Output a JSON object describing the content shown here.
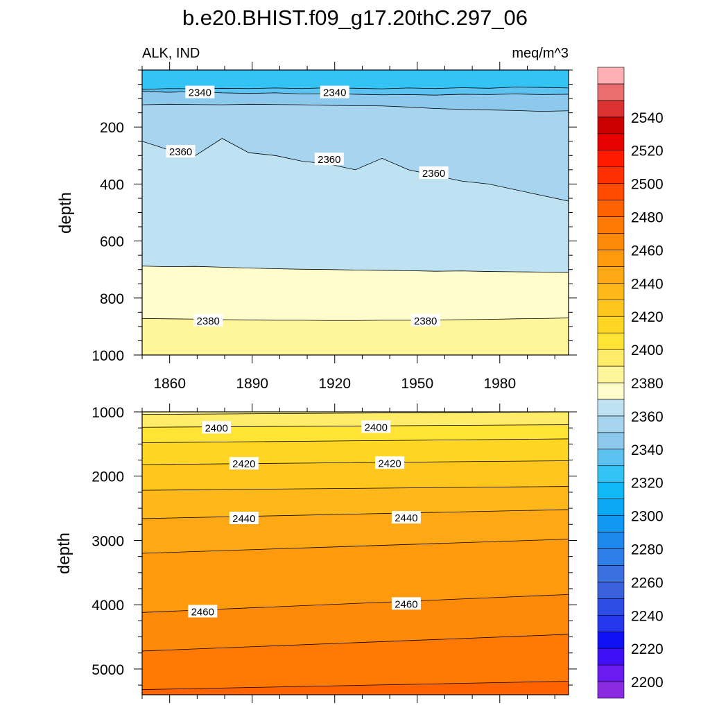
{
  "title": "b.e20.BHIST.f09_g17.20thC.297_06",
  "chart_data": [
    {
      "type": "contour",
      "panel": "upper",
      "left_label": "ALK, IND",
      "right_label": "meq/m^3",
      "xlabel": "",
      "ylabel": "depth",
      "xlim": [
        1850,
        2005
      ],
      "ylim": [
        1000,
        0
      ],
      "x_ticks": [
        1860,
        1890,
        1920,
        1950,
        1980
      ],
      "y_ticks": [
        200,
        400,
        600,
        800,
        1000
      ],
      "contour_lines": [
        {
          "level": 2330,
          "depths": [
            68,
            65,
            66,
            64,
            65,
            63,
            65,
            62,
            64,
            66,
            63,
            65,
            62,
            64,
            60,
            61,
            63
          ]
        },
        {
          "level": 2340,
          "depths": [
            75,
            78,
            75,
            80,
            82,
            80,
            84,
            83,
            85,
            87,
            86,
            88,
            85,
            86,
            84,
            86,
            85
          ]
        },
        {
          "level": 2350,
          "depths": [
            122,
            120,
            121,
            122,
            120,
            121,
            122,
            124,
            125,
            126,
            130,
            135,
            138,
            140,
            142,
            145,
            143
          ]
        },
        {
          "level": 2360,
          "depths": [
            250,
            280,
            300,
            240,
            290,
            300,
            320,
            330,
            350,
            310,
            350,
            370,
            390,
            400,
            420,
            440,
            460
          ]
        },
        {
          "level": 2370,
          "depths": [
            688,
            690,
            689,
            692,
            695,
            697,
            699,
            700,
            702,
            703,
            704,
            706,
            705,
            707,
            708,
            709,
            710
          ]
        },
        {
          "level": 2380,
          "depths": [
            872,
            873,
            874,
            876,
            877,
            878,
            878,
            879,
            879,
            878,
            878,
            877,
            876,
            875,
            873,
            872,
            870
          ]
        }
      ],
      "line_labels": [
        {
          "text": "2340",
          "year": 1871,
          "depth": 77
        },
        {
          "text": "2340",
          "year": 1920,
          "depth": 77
        },
        {
          "text": "2360",
          "year": 1864,
          "depth": 285
        },
        {
          "text": "2360",
          "year": 1918,
          "depth": 312
        },
        {
          "text": "2360",
          "year": 1956,
          "depth": 360
        },
        {
          "text": "2380",
          "year": 1874,
          "depth": 878
        },
        {
          "text": "2380",
          "year": 1953,
          "depth": 878
        }
      ]
    },
    {
      "type": "contour",
      "panel": "lower",
      "ylabel": "depth",
      "xlim": [
        1850,
        2005
      ],
      "ylim": [
        5400,
        1000
      ],
      "y_ticks": [
        1000,
        2000,
        3000,
        4000,
        5000
      ],
      "contour_lines": [
        {
          "level": 2390,
          "depths": [
            1040,
            1000
          ]
        },
        {
          "level": 2400,
          "depths": [
            1240,
            1200
          ]
        },
        {
          "level": 2410,
          "depths": [
            1480,
            1420
          ]
        },
        {
          "level": 2420,
          "depths": [
            1820,
            1760
          ]
        },
        {
          "level": 2430,
          "depths": [
            2220,
            2160
          ]
        },
        {
          "level": 2440,
          "depths": [
            2660,
            2520
          ]
        },
        {
          "level": 2450,
          "depths": [
            3200,
            2980
          ]
        },
        {
          "level": 2460,
          "depths": [
            4120,
            3840
          ]
        },
        {
          "level": 2470,
          "depths": [
            4720,
            4460
          ]
        },
        {
          "level": 2480,
          "depths": [
            5320,
            5190
          ]
        }
      ],
      "line_labels": [
        {
          "text": "2400",
          "year": 1877,
          "depth": 1240
        },
        {
          "text": "2400",
          "year": 1935,
          "depth": 1230
        },
        {
          "text": "2420",
          "year": 1887,
          "depth": 1800
        },
        {
          "text": "2420",
          "year": 1940,
          "depth": 1790
        },
        {
          "text": "2440",
          "year": 1887,
          "depth": 2650
        },
        {
          "text": "2440",
          "year": 1946,
          "depth": 2640
        },
        {
          "text": "2460",
          "year": 1872,
          "depth": 4100
        },
        {
          "text": "2460",
          "year": 1946,
          "depth": 3980
        }
      ]
    }
  ],
  "colorbar": {
    "levels": [
      2190,
      2200,
      2210,
      2220,
      2230,
      2240,
      2250,
      2260,
      2270,
      2280,
      2290,
      2300,
      2310,
      2320,
      2330,
      2340,
      2350,
      2360,
      2370,
      2380,
      2390,
      2400,
      2410,
      2420,
      2430,
      2440,
      2450,
      2460,
      2470,
      2480,
      2490,
      2500,
      2510,
      2520,
      2530,
      2540,
      2550,
      2560
    ],
    "colors": [
      "#8A2BE2",
      "#6A1BF0",
      "#3F10F5",
      "#1010F5",
      "#2638EE",
      "#2E4CE6",
      "#3B62DD",
      "#3C6FDF",
      "#2F7DE8",
      "#1E88EE",
      "#1198F5",
      "#0AA8F5",
      "#10B8F5",
      "#33C4F5",
      "#5EC2F0",
      "#8CC9EC",
      "#A7D5F0",
      "#BEE2F2",
      "#FFFDCB",
      "#FFF59A",
      "#FFED6A",
      "#FFE335",
      "#FFD624",
      "#FFC61E",
      "#FFB81A",
      "#FFA815",
      "#FF9A0E",
      "#FF8A08",
      "#FF7A04",
      "#FF6200",
      "#FF4A00",
      "#FF3000",
      "#FF1A00",
      "#E80000",
      "#CC0000",
      "#DC3232",
      "#EA6E6E",
      "#FFB0B4"
    ],
    "tick_labels": [
      "2200",
      "2220",
      "2240",
      "2260",
      "2280",
      "2300",
      "2320",
      "2340",
      "2360",
      "2380",
      "2400",
      "2420",
      "2440",
      "2460",
      "2480",
      "2500",
      "2520",
      "2540"
    ]
  }
}
